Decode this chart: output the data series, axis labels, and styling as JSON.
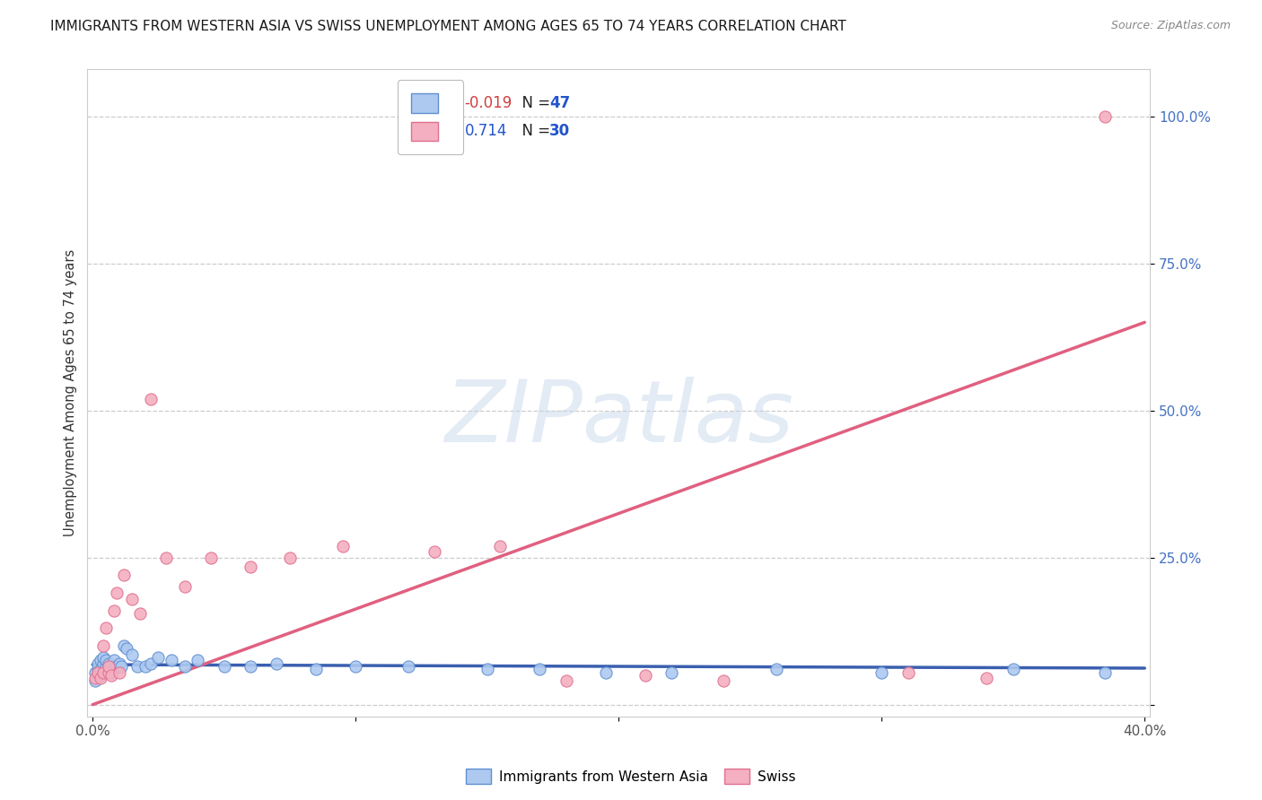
{
  "title": "IMMIGRANTS FROM WESTERN ASIA VS SWISS UNEMPLOYMENT AMONG AGES 65 TO 74 YEARS CORRELATION CHART",
  "source": "Source: ZipAtlas.com",
  "ylabel": "Unemployment Among Ages 65 to 74 years",
  "legend_label1": "Immigrants from Western Asia",
  "legend_label2": "Swiss",
  "R1": "-0.019",
  "N1": "47",
  "R2": "0.714",
  "N2": "30",
  "xlim": [
    -0.002,
    0.402
  ],
  "ylim": [
    -0.02,
    1.08
  ],
  "xticks": [
    0.0,
    0.1,
    0.2,
    0.3,
    0.4
  ],
  "xtick_labels": [
    "0.0%",
    "",
    "",
    "",
    "40.0%"
  ],
  "ytick_vals": [
    0.0,
    0.25,
    0.5,
    0.75,
    1.0
  ],
  "ytick_labels": [
    "",
    "25.0%",
    "50.0%",
    "75.0%",
    "100.0%"
  ],
  "color_blue_fill": "#aec9f0",
  "color_pink_fill": "#f4afc0",
  "color_blue_edge": "#6090d0",
  "color_pink_edge": "#e07090",
  "color_blue_line": "#3a5faf",
  "color_pink_line": "#e06080",
  "watermark_text": "ZIPatlas",
  "blue_points_x": [
    0.001,
    0.001,
    0.002,
    0.002,
    0.002,
    0.003,
    0.003,
    0.003,
    0.004,
    0.004,
    0.004,
    0.005,
    0.005,
    0.005,
    0.006,
    0.006,
    0.007,
    0.007,
    0.008,
    0.008,
    0.009,
    0.01,
    0.011,
    0.012,
    0.013,
    0.015,
    0.017,
    0.02,
    0.022,
    0.025,
    0.03,
    0.035,
    0.04,
    0.05,
    0.06,
    0.07,
    0.085,
    0.1,
    0.12,
    0.15,
    0.17,
    0.195,
    0.22,
    0.26,
    0.3,
    0.35,
    0.385
  ],
  "blue_points_y": [
    0.055,
    0.04,
    0.06,
    0.05,
    0.07,
    0.05,
    0.06,
    0.075,
    0.055,
    0.07,
    0.08,
    0.055,
    0.065,
    0.075,
    0.06,
    0.07,
    0.055,
    0.065,
    0.06,
    0.075,
    0.065,
    0.07,
    0.065,
    0.1,
    0.095,
    0.085,
    0.065,
    0.065,
    0.07,
    0.08,
    0.075,
    0.065,
    0.075,
    0.065,
    0.065,
    0.07,
    0.06,
    0.065,
    0.065,
    0.06,
    0.06,
    0.055,
    0.055,
    0.06,
    0.055,
    0.06,
    0.055
  ],
  "pink_points_x": [
    0.001,
    0.002,
    0.003,
    0.004,
    0.004,
    0.005,
    0.006,
    0.006,
    0.007,
    0.008,
    0.009,
    0.01,
    0.012,
    0.015,
    0.018,
    0.022,
    0.028,
    0.035,
    0.045,
    0.06,
    0.075,
    0.095,
    0.13,
    0.155,
    0.18,
    0.21,
    0.24,
    0.31,
    0.34,
    0.385
  ],
  "pink_points_y": [
    0.045,
    0.055,
    0.045,
    0.1,
    0.055,
    0.13,
    0.055,
    0.065,
    0.05,
    0.16,
    0.19,
    0.055,
    0.22,
    0.18,
    0.155,
    0.52,
    0.25,
    0.2,
    0.25,
    0.235,
    0.25,
    0.27,
    0.26,
    0.27,
    0.04,
    0.05,
    0.04,
    0.055,
    0.045,
    1.0
  ],
  "blue_trend_x": [
    0.0,
    0.4
  ],
  "blue_trend_y": [
    0.068,
    0.062
  ],
  "pink_trend_x": [
    0.0,
    0.4
  ],
  "pink_trend_y": [
    0.0,
    0.65
  ],
  "title_fontsize": 11,
  "source_fontsize": 9,
  "tick_fontsize": 11,
  "ytick_color": "#4472c4",
  "xtick_color": "#555555",
  "grid_color": "#cccccc",
  "background_color": "#ffffff",
  "spine_color": "#cccccc"
}
